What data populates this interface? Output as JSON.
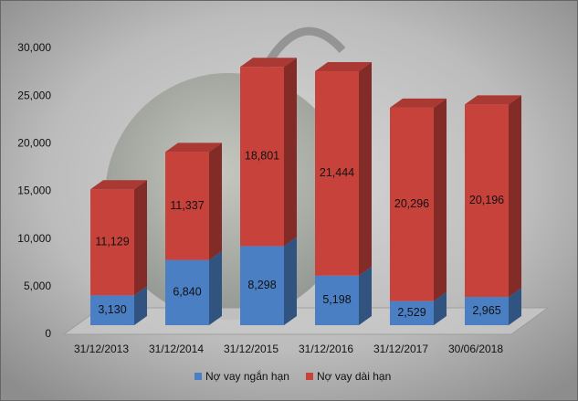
{
  "chart_data": {
    "type": "stacked-bar-3d",
    "categories": [
      "31/12/2013",
      "31/12/2014",
      "31/12/2015",
      "31/12/2016",
      "31/12/2017",
      "30/06/2018"
    ],
    "series": [
      {
        "name": "Nợ vay ngắn hạn",
        "color": "#4a7fc4",
        "values": [
          3130,
          6840,
          8298,
          5198,
          2529,
          2965
        ],
        "value_labels": [
          "3,130",
          "6,840",
          "8,298",
          "5,198",
          "2,529",
          "2,965"
        ]
      },
      {
        "name": "Nợ vay dài hạn",
        "color": "#c8423c",
        "values": [
          11129,
          11337,
          18801,
          21444,
          20296,
          20196
        ],
        "value_labels": [
          "11,129",
          "11,337",
          "18,801",
          "21,444",
          "20,296",
          "20,196"
        ]
      }
    ],
    "ylim": [
      0,
      30000
    ],
    "yticks": [
      0,
      {
        "value": 5000,
        "label": "5,000"
      },
      {
        "value": 10000,
        "label": "10,000"
      },
      {
        "value": 15000,
        "label": "15,000"
      },
      {
        "value": 20000,
        "label": "20,000"
      },
      {
        "value": 25000,
        "label": "25,000"
      },
      {
        "value": 30000,
        "label": "30,000"
      }
    ],
    "grid": false,
    "legend": "bottom"
  }
}
